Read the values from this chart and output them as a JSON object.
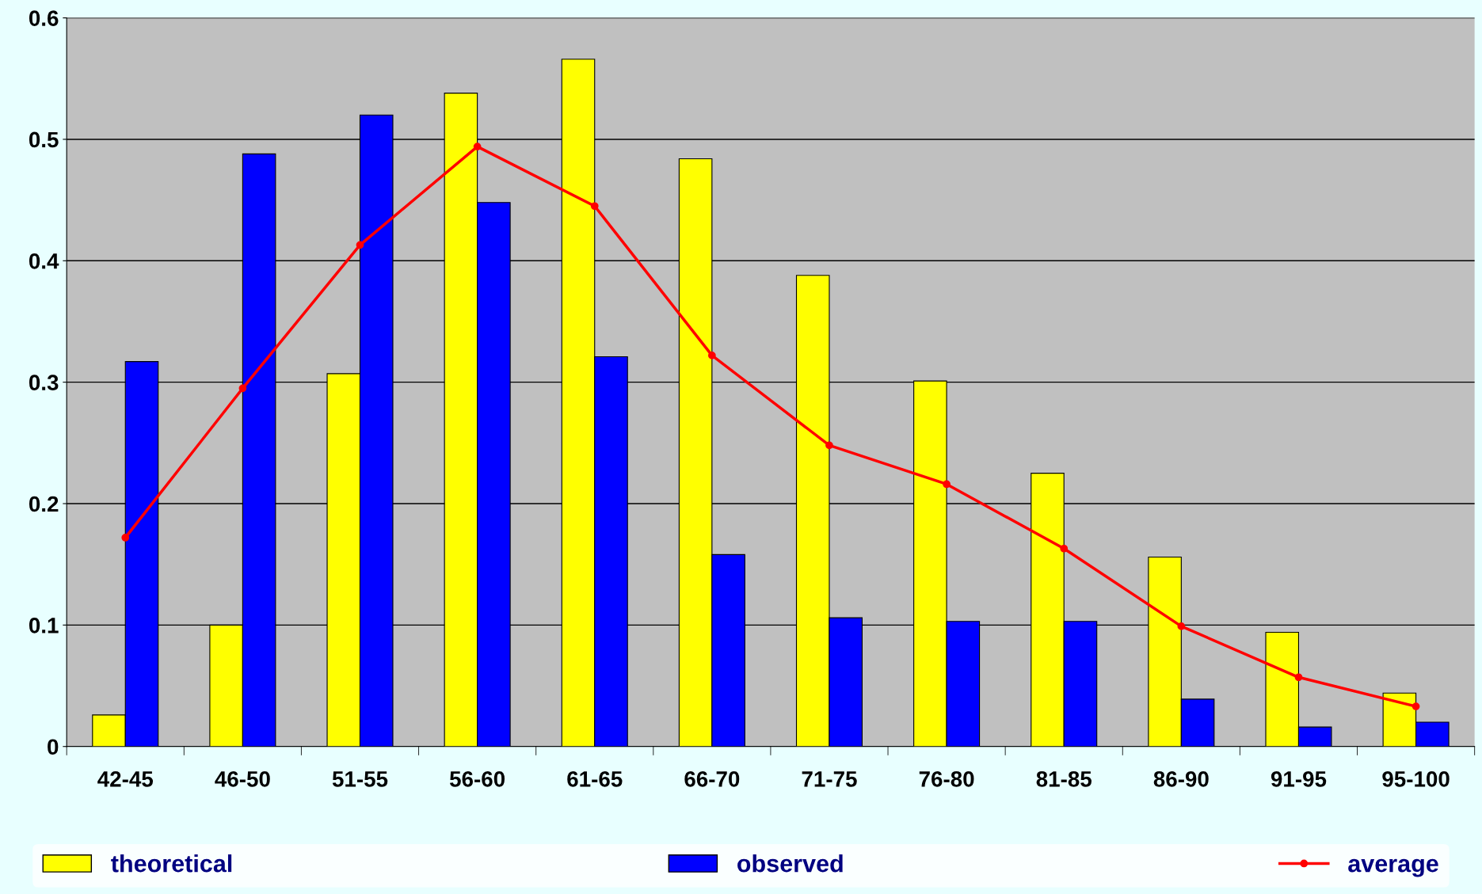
{
  "chart_data": {
    "type": "bar",
    "categories": [
      "42-45",
      "46-50",
      "51-55",
      "56-60",
      "61-65",
      "66-70",
      "71-75",
      "76-80",
      "81-85",
      "86-90",
      "91-95",
      "95-100"
    ],
    "series": [
      {
        "name": "theoretical",
        "color": "#ffff00",
        "values": [
          0.026,
          0.1,
          0.307,
          0.538,
          0.566,
          0.484,
          0.388,
          0.301,
          0.225,
          0.156,
          0.094,
          0.044
        ]
      },
      {
        "name": "observed",
        "color": "#0000ff",
        "values": [
          0.317,
          0.488,
          0.52,
          0.448,
          0.321,
          0.158,
          0.106,
          0.103,
          0.103,
          0.039,
          0.016,
          0.02
        ]
      },
      {
        "name": "average",
        "type": "line",
        "color": "#ff0000",
        "marker": "circle",
        "values": [
          0.172,
          0.295,
          0.413,
          0.494,
          0.445,
          0.322,
          0.248,
          0.216,
          0.163,
          0.099,
          0.057,
          0.033
        ]
      }
    ],
    "ylim": [
      0,
      0.6
    ],
    "yticks": [
      0,
      0.1,
      0.2,
      0.3,
      0.4,
      0.5,
      0.6
    ],
    "grid": "y",
    "legend": "bottom"
  }
}
